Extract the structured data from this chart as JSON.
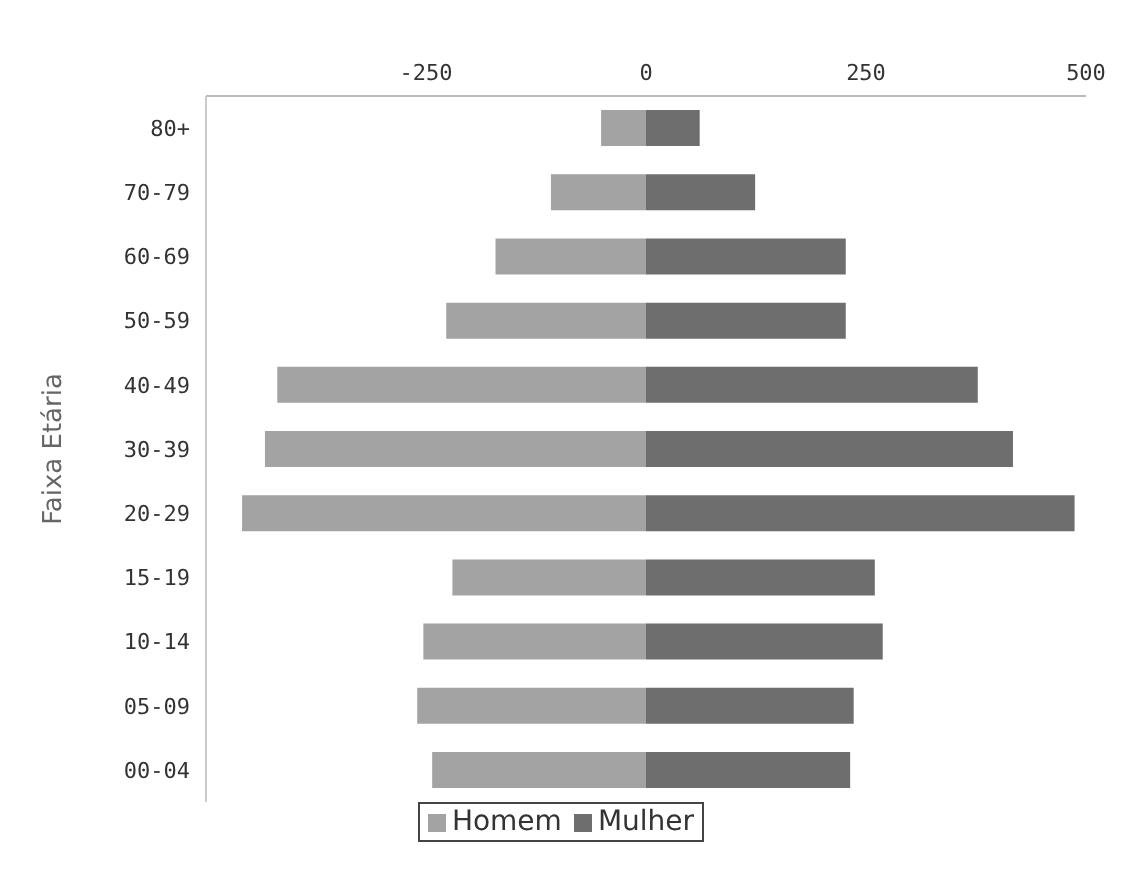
{
  "chart_data": {
    "type": "bar",
    "orientation": "horizontal",
    "stacked": true,
    "ylabel": "Faixa Etária",
    "categories": [
      "80+",
      "70-79",
      "60-69",
      "50-59",
      "40-49",
      "30-39",
      "20-29",
      "15-19",
      "10-14",
      "05-09",
      "00-04"
    ],
    "series": [
      {
        "name": "Homem",
        "color": "#a3a3a3",
        "values": [
          -51,
          -108,
          -171,
          -227,
          -419,
          -433,
          -459,
          -220,
          -253,
          -260,
          -243
        ]
      },
      {
        "name": "Mulher",
        "color": "#6e6e6e",
        "values": [
          61,
          124,
          227,
          227,
          377,
          417,
          487,
          260,
          269,
          236,
          232
        ]
      }
    ],
    "xlim": [
      -500,
      500
    ],
    "xticks": [
      -250,
      0,
      250,
      500
    ],
    "legend": "bottom",
    "grid": false
  }
}
